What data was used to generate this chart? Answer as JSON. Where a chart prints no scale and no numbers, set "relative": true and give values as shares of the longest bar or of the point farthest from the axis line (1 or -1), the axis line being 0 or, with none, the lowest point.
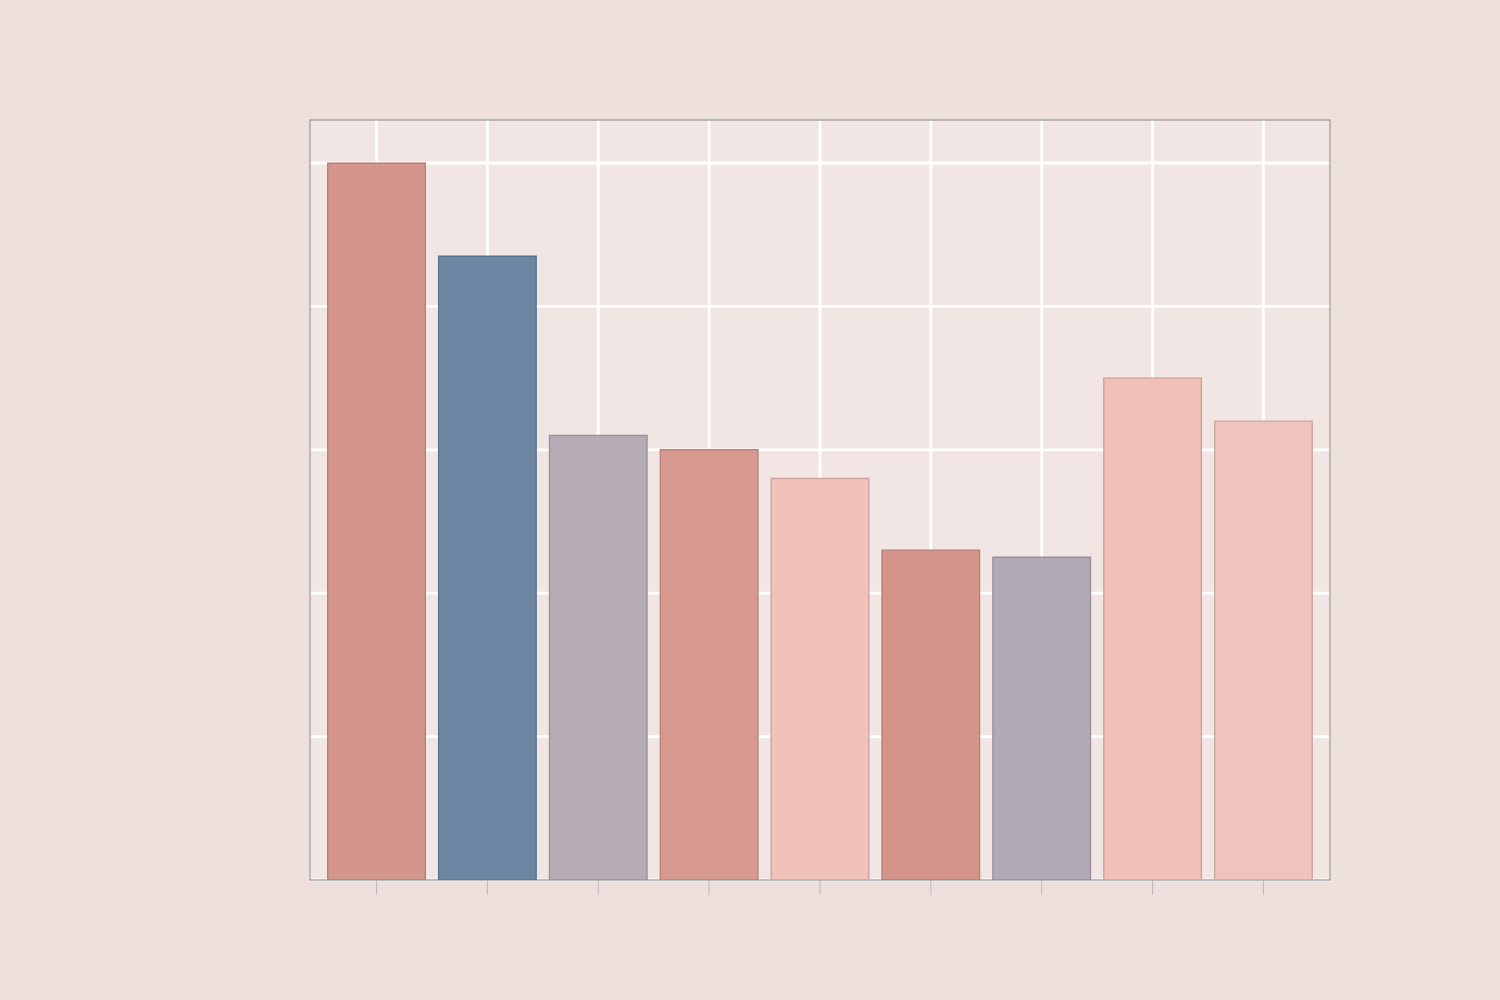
{
  "chart_data": {
    "type": "bar",
    "relative": true,
    "grid": true,
    "categories": [
      null,
      null,
      null,
      null,
      null,
      null,
      null,
      null,
      null
    ],
    "values": [
      1,
      0.87,
      0.62,
      0.6,
      0.56,
      0.46,
      0.45,
      0.7,
      0.64
    ],
    "colors": [
      "#d4968c",
      "#6c86a4",
      "#b6acb6",
      "#d89a90",
      "#f0c2ba",
      "#d4948a",
      "#b2aab6",
      "#f2c0b6",
      "#eec4bc"
    ]
  }
}
